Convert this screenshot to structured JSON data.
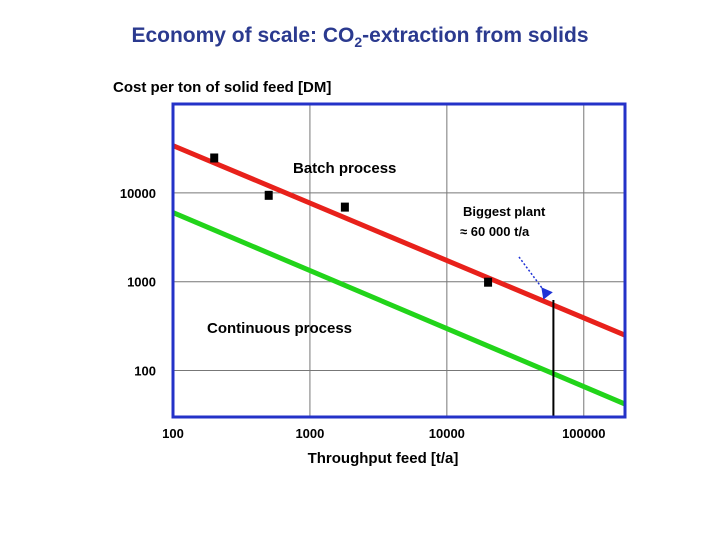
{
  "title": {
    "main": "Economy of scale: CO",
    "sub": "2",
    "rest": "-extraction from solids"
  },
  "chart_data": {
    "type": "line",
    "xlabel": "Throughput feed [t/a]",
    "ylabel": "Cost per ton of solid feed  [DM]",
    "xscale": "log",
    "yscale": "log",
    "xlim": [
      100,
      200000
    ],
    "ylim": [
      30,
      100000
    ],
    "xticks": [
      100,
      1000,
      10000,
      100000
    ],
    "xtick_labels": [
      "100",
      "1000",
      "10000",
      "100000"
    ],
    "yticks": [
      100,
      1000,
      10000
    ],
    "ytick_labels": [
      "100",
      "1000",
      "10000"
    ],
    "grid": true,
    "series": [
      {
        "name": "Batch process",
        "color": "#e8211b",
        "x": [
          100,
          200000
        ],
        "y": [
          34000,
          250
        ]
      },
      {
        "name": "Continuous process",
        "color": "#22d41a",
        "x": [
          100,
          200000
        ],
        "y": [
          6000,
          42
        ]
      }
    ],
    "points": {
      "color": "#000000",
      "x": [
        200,
        500,
        1800,
        20000
      ],
      "y": [
        25000,
        9500,
        7000,
        1000
      ]
    },
    "annotations": [
      {
        "text": "Batch process"
      },
      {
        "text": "Continuous process"
      },
      {
        "text": "Biggest plant"
      },
      {
        "text": "≈ 60 000 t/a"
      }
    ],
    "marker": {
      "x": 60000,
      "arrow_color": "#1f33d6"
    }
  },
  "colors": {
    "frame": "#2432c8",
    "title": "#2b3a8f",
    "grid": "#777777"
  }
}
